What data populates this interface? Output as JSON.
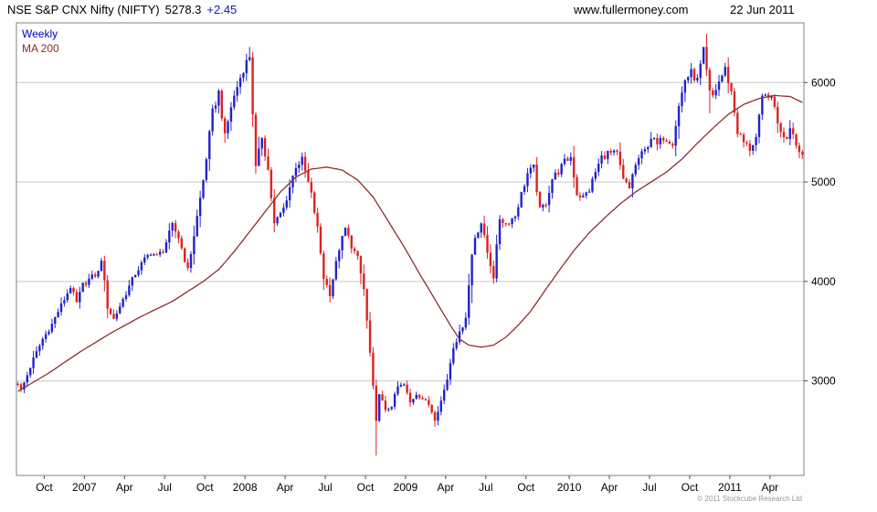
{
  "header": {
    "title": "NSE S&P CNX Nifty (NIFTY)",
    "last_price": "5278.3",
    "change": "+2.45",
    "website": "www.fullermoney.com",
    "date": "22 Jun 2011"
  },
  "footer": {
    "copyright": "© 2011 Stockcube Research Ltd"
  },
  "chart_data": {
    "type": "candlestick",
    "title": "NSE S&P CNX Nifty (NIFTY) weekly with 200-period moving average",
    "legend": [
      {
        "label": "Weekly"
      },
      {
        "label": "MA 200"
      }
    ],
    "weeks_total": 255,
    "ylim": [
      2050,
      6600
    ],
    "y_ticks": [
      3000,
      4000,
      5000,
      6000
    ],
    "x_ticks": [
      {
        "label": "Oct",
        "week": 9
      },
      {
        "label": "2007",
        "week": 22
      },
      {
        "label": "Apr",
        "week": 35
      },
      {
        "label": "Jul",
        "week": 48
      },
      {
        "label": "Oct",
        "week": 61
      },
      {
        "label": "2008",
        "week": 74
      },
      {
        "label": "Apr",
        "week": 87
      },
      {
        "label": "Jul",
        "week": 100
      },
      {
        "label": "Oct",
        "week": 113
      },
      {
        "label": "2009",
        "week": 126
      },
      {
        "label": "Apr",
        "week": 139
      },
      {
        "label": "Jul",
        "week": 152
      },
      {
        "label": "Oct",
        "week": 165
      },
      {
        "label": "2010",
        "week": 179
      },
      {
        "label": "Apr",
        "week": 192
      },
      {
        "label": "Jul",
        "week": 205
      },
      {
        "label": "Oct",
        "week": 218
      },
      {
        "label": "2011",
        "week": 231
      },
      {
        "label": "Apr",
        "week": 244
      }
    ],
    "close_anchors": [
      [
        0,
        2980
      ],
      [
        1,
        2905
      ],
      [
        3,
        3060
      ],
      [
        5,
        3220
      ],
      [
        8,
        3420
      ],
      [
        11,
        3570
      ],
      [
        13,
        3700
      ],
      [
        15,
        3820
      ],
      [
        17,
        3950
      ],
      [
        19,
        3780
      ],
      [
        21,
        3966
      ],
      [
        23,
        4020
      ],
      [
        26,
        4090
      ],
      [
        27,
        4230
      ],
      [
        29,
        3745
      ],
      [
        31,
        3620
      ],
      [
        34,
        3820
      ],
      [
        38,
        4080
      ],
      [
        41,
        4220
      ],
      [
        43,
        4295
      ],
      [
        45,
        4250
      ],
      [
        47,
        4318
      ],
      [
        50,
        4560
      ],
      [
        52,
        4445
      ],
      [
        55,
        4110
      ],
      [
        57,
        4465
      ],
      [
        60,
        5020
      ],
      [
        63,
        5700
      ],
      [
        65,
        5900
      ],
      [
        67,
        5450
      ],
      [
        69,
        5760
      ],
      [
        71,
        5960
      ],
      [
        73,
        6140
      ],
      [
        75,
        6270
      ],
      [
        76,
        5700
      ],
      [
        77,
        5137
      ],
      [
        79,
        5460
      ],
      [
        81,
        5120
      ],
      [
        83,
        4573
      ],
      [
        86,
        4735
      ],
      [
        88,
        4950
      ],
      [
        90,
        5165
      ],
      [
        92,
        5220
      ],
      [
        95,
        4870
      ],
      [
        97,
        4530
      ],
      [
        99,
        4040
      ],
      [
        101,
        3878
      ],
      [
        104,
        4333
      ],
      [
        106,
        4530
      ],
      [
        108,
        4360
      ],
      [
        110,
        4228
      ],
      [
        112,
        3921
      ],
      [
        114,
        3279
      ],
      [
        116,
        2584
      ],
      [
        117,
        2886
      ],
      [
        119,
        2693
      ],
      [
        121,
        2755
      ],
      [
        123,
        2940
      ],
      [
        125,
        2959
      ],
      [
        127,
        2780
      ],
      [
        129,
        2874
      ],
      [
        131,
        2820
      ],
      [
        133,
        2764
      ],
      [
        135,
        2620
      ],
      [
        137,
        2800
      ],
      [
        139,
        3021
      ],
      [
        141,
        3350
      ],
      [
        143,
        3474
      ],
      [
        145,
        3650
      ],
      [
        147,
        4270
      ],
      [
        148,
        4448
      ],
      [
        150,
        4590
      ],
      [
        152,
        4291
      ],
      [
        154,
        4050
      ],
      [
        156,
        4636
      ],
      [
        158,
        4580
      ],
      [
        161,
        4662
      ],
      [
        163,
        4880
      ],
      [
        165,
        5084
      ],
      [
        167,
        5142
      ],
      [
        169,
        4712
      ],
      [
        171,
        4796
      ],
      [
        173,
        5033
      ],
      [
        175,
        5108
      ],
      [
        177,
        5201
      ],
      [
        179,
        5252
      ],
      [
        181,
        4882
      ],
      [
        183,
        4845
      ],
      [
        185,
        4922
      ],
      [
        187,
        5100
      ],
      [
        189,
        5249
      ],
      [
        191,
        5290
      ],
      [
        194,
        5278
      ],
      [
        196,
        5018
      ],
      [
        198,
        4931
      ],
      [
        199,
        5086
      ],
      [
        201,
        5237
      ],
      [
        203,
        5313
      ],
      [
        205,
        5452
      ],
      [
        207,
        5368
      ],
      [
        209,
        5452
      ],
      [
        212,
        5402
      ],
      [
        214,
        5760
      ],
      [
        216,
        6030
      ],
      [
        218,
        6096
      ],
      [
        220,
        6018
      ],
      [
        222,
        6312
      ],
      [
        224,
        5890
      ],
      [
        225,
        5863
      ],
      [
        227,
        6010
      ],
      [
        229,
        6134
      ],
      [
        231,
        5904
      ],
      [
        233,
        5506
      ],
      [
        235,
        5396
      ],
      [
        237,
        5333
      ],
      [
        239,
        5445
      ],
      [
        241,
        5833
      ],
      [
        243,
        5885
      ],
      [
        245,
        5749
      ],
      [
        247,
        5486
      ],
      [
        249,
        5459
      ],
      [
        250,
        5560
      ],
      [
        251,
        5516
      ],
      [
        252,
        5366
      ],
      [
        254,
        5278
      ]
    ],
    "ma_anchors": [
      [
        0,
        2895
      ],
      [
        10,
        3080
      ],
      [
        20,
        3290
      ],
      [
        30,
        3480
      ],
      [
        40,
        3650
      ],
      [
        50,
        3800
      ],
      [
        55,
        3900
      ],
      [
        60,
        4000
      ],
      [
        65,
        4120
      ],
      [
        70,
        4300
      ],
      [
        75,
        4500
      ],
      [
        80,
        4700
      ],
      [
        85,
        4900
      ],
      [
        90,
        5050
      ],
      [
        95,
        5130
      ],
      [
        100,
        5150
      ],
      [
        105,
        5120
      ],
      [
        110,
        5020
      ],
      [
        115,
        4850
      ],
      [
        120,
        4600
      ],
      [
        125,
        4350
      ],
      [
        130,
        4080
      ],
      [
        135,
        3820
      ],
      [
        140,
        3560
      ],
      [
        143,
        3420
      ],
      [
        146,
        3360
      ],
      [
        150,
        3340
      ],
      [
        154,
        3360
      ],
      [
        158,
        3440
      ],
      [
        162,
        3560
      ],
      [
        166,
        3700
      ],
      [
        170,
        3880
      ],
      [
        175,
        4100
      ],
      [
        180,
        4310
      ],
      [
        185,
        4490
      ],
      [
        190,
        4640
      ],
      [
        195,
        4780
      ],
      [
        200,
        4900
      ],
      [
        205,
        5000
      ],
      [
        210,
        5100
      ],
      [
        215,
        5230
      ],
      [
        220,
        5390
      ],
      [
        225,
        5540
      ],
      [
        230,
        5680
      ],
      [
        235,
        5780
      ],
      [
        240,
        5840
      ],
      [
        245,
        5870
      ],
      [
        250,
        5860
      ],
      [
        254,
        5800
      ]
    ],
    "wick_events": [
      {
        "week": 67,
        "low": 5394
      },
      {
        "week": 75,
        "high": 6357
      },
      {
        "week": 101,
        "low": 3790
      },
      {
        "week": 116,
        "low": 2250
      },
      {
        "week": 135,
        "low": 2539
      },
      {
        "week": 222,
        "high": 6338
      },
      {
        "week": 224,
        "low": 5690
      }
    ],
    "colors": {
      "up": "#2222cc",
      "down": "#dd2222",
      "ma": "#8b2e2e",
      "grid": "#c8c8c8",
      "border": "#808080",
      "axis_text": "#000000",
      "legend_weekly": "#0000cc",
      "change": "#1414cc"
    }
  }
}
